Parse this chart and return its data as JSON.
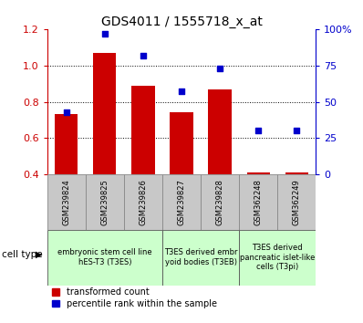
{
  "title": "GDS4011 / 1555718_x_at",
  "samples": [
    "GSM239824",
    "GSM239825",
    "GSM239826",
    "GSM239827",
    "GSM239828",
    "GSM362248",
    "GSM362249"
  ],
  "transformed_count": [
    0.73,
    1.07,
    0.89,
    0.74,
    0.87,
    0.41,
    0.41
  ],
  "percentile_rank_pct": [
    43,
    97,
    82,
    57,
    73,
    30,
    30
  ],
  "ylim_left": [
    0.4,
    1.2
  ],
  "ylim_right": [
    0,
    100
  ],
  "yticks_left": [
    0.4,
    0.6,
    0.8,
    1.0,
    1.2
  ],
  "yticks_right": [
    0,
    25,
    50,
    75,
    100
  ],
  "ytick_labels_right": [
    "0",
    "25",
    "50",
    "75",
    "100%"
  ],
  "bar_color": "#cc0000",
  "dot_color": "#0000cc",
  "bar_bottom": 0.4,
  "cell_types": [
    {
      "label": "embryonic stem cell line\nhES-T3 (T3ES)",
      "samples": [
        0,
        1,
        2
      ],
      "color": "#ccffcc"
    },
    {
      "label": "T3ES derived embr\nyoid bodies (T3EB)",
      "samples": [
        3,
        4
      ],
      "color": "#ccffcc"
    },
    {
      "label": "T3ES derived\npancreatic islet-like\ncells (T3pi)",
      "samples": [
        5,
        6
      ],
      "color": "#ccffcc"
    }
  ],
  "legend_red": "transformed count",
  "legend_blue": "percentile rank within the sample",
  "cell_type_label": "cell type",
  "left_axis_color": "#cc0000",
  "right_axis_color": "#0000cc",
  "bar_width": 0.6,
  "dot_size": 18,
  "gsm_bg_color": "#c8c8c8",
  "gsm_edge_color": "#888888",
  "cell_edge_color": "#555555"
}
